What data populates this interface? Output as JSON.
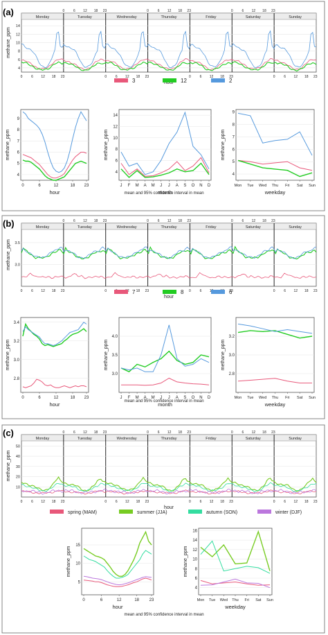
{
  "colors": {
    "p3": "#e8587a",
    "p12": "#22cc22",
    "p2": "#5599dd",
    "p7": "#e8587a",
    "p8": "#22cc22",
    "p6": "#5599dd",
    "spring": "#e8587a",
    "summer": "#77cc22",
    "autumn": "#33dda0",
    "winter": "#bb77dd"
  },
  "common": {
    "days": [
      "Monday",
      "Tuesday",
      "Wednesday",
      "Thursday",
      "Friday",
      "Saturday",
      "Sunday"
    ],
    "top_ticks": [
      "0",
      "6",
      "12",
      "18",
      "23"
    ],
    "hour_ticks": [
      "0",
      "6",
      "12",
      "18",
      "23"
    ],
    "months": [
      "J",
      "F",
      "M",
      "A",
      "M",
      "J",
      "J",
      "A",
      "S",
      "O",
      "N",
      "D"
    ],
    "weekdays": [
      "Mon",
      "Tue",
      "Wed",
      "Thu",
      "Fri",
      "Sat",
      "Sun"
    ],
    "ylabel": "methane_ppm",
    "x_hour": "hour",
    "x_month": "month",
    "x_weekday": "weekday",
    "caption": "mean and 95% confidence interval in mean"
  },
  "chart_data": [
    {
      "panel": "(a)",
      "type": "line",
      "legend": [
        "3",
        "12",
        "2"
      ],
      "main": {
        "ylim": [
          3,
          15.5
        ],
        "yticks": [
          "4",
          "6",
          "8",
          "10",
          "12",
          "14"
        ]
      },
      "hour": {
        "ylim": [
          3.5,
          9.8
        ],
        "yticks": [
          "4",
          "5",
          "6",
          "7",
          "8",
          "9"
        ],
        "series": [
          [
            5.8,
            5.7,
            5.6,
            5.5,
            5.3,
            5.1,
            4.9,
            4.6,
            4.3,
            4.0,
            3.8,
            3.7,
            3.7,
            3.8,
            3.9,
            4.1,
            4.5,
            4.9,
            5.3,
            5.6,
            5.8,
            6.0,
            6.0,
            5.9
          ],
          [
            5.3,
            5.2,
            5.2,
            5.1,
            4.9,
            4.7,
            4.5,
            4.2,
            3.9,
            3.7,
            3.6,
            3.5,
            3.5,
            3.6,
            3.7,
            3.8,
            4.1,
            4.4,
            4.7,
            5.0,
            5.1,
            5.2,
            5.1,
            5.0
          ],
          [
            9.6,
            9.4,
            9.0,
            8.8,
            8.6,
            8.4,
            8.1,
            7.6,
            6.9,
            6.0,
            5.2,
            4.6,
            4.3,
            4.2,
            4.3,
            4.6,
            5.2,
            6.1,
            7.2,
            8.2,
            9.0,
            9.6,
            9.2,
            8.8
          ]
        ]
      },
      "month": {
        "ylim": [
          2.5,
          15
        ],
        "yticks": [
          "4",
          "6",
          "8",
          "10",
          "12",
          "14"
        ],
        "series": [
          [
            5.5,
            3.5,
            4.5,
            3.2,
            3.3,
            3.8,
            4.5,
            5.8,
            4.2,
            5.0,
            6.5,
            3.8
          ],
          [
            4.5,
            3.0,
            4.2,
            3.0,
            3.1,
            3.4,
            3.8,
            4.5,
            4.0,
            4.2,
            5.5,
            3.5
          ],
          [
            7.5,
            5.0,
            5.5,
            3.5,
            4.0,
            6.0,
            9.0,
            11.0,
            14.5,
            8.5,
            7.0,
            4.5
          ]
        ]
      },
      "weekday": {
        "ylim": [
          3.5,
          9.2
        ],
        "yticks": [
          "4",
          "5",
          "6",
          "7",
          "8",
          "9"
        ],
        "series": [
          [
            5.1,
            5.0,
            4.8,
            4.9,
            5.0,
            4.5,
            4.3
          ],
          [
            5.1,
            4.8,
            4.5,
            4.4,
            4.3,
            3.8,
            4.1
          ],
          [
            8.9,
            8.7,
            6.5,
            6.7,
            6.8,
            7.4,
            5.5
          ]
        ]
      }
    },
    {
      "panel": "(b)",
      "type": "line",
      "legend": [
        "7",
        "8",
        "6"
      ],
      "main": {
        "ylim": [
          2.5,
          3.8
        ],
        "yticks": [
          "2.5",
          "3.0",
          "3.5"
        ]
      },
      "hour": {
        "ylim": [
          2.65,
          3.45
        ],
        "yticks": [
          "2.8",
          "3.0",
          "3.2",
          "3.4"
        ],
        "series": [
          [
            2.71,
            2.7,
            2.71,
            2.72,
            2.75,
            2.79,
            2.78,
            2.76,
            2.73,
            2.72,
            2.73,
            2.71,
            2.7,
            2.7,
            2.71,
            2.72,
            2.71,
            2.7,
            2.71,
            2.72,
            2.71,
            2.72,
            2.72,
            2.71
          ],
          [
            3.25,
            3.38,
            3.33,
            3.3,
            3.27,
            3.25,
            3.22,
            3.17,
            3.15,
            3.16,
            3.15,
            3.14,
            3.15,
            3.16,
            3.17,
            3.2,
            3.22,
            3.25,
            3.27,
            3.28,
            3.29,
            3.31,
            3.33,
            3.3
          ],
          [
            3.3,
            3.35,
            3.32,
            3.3,
            3.28,
            3.26,
            3.24,
            3.2,
            3.17,
            3.17,
            3.16,
            3.15,
            3.16,
            3.18,
            3.2,
            3.23,
            3.26,
            3.29,
            3.3,
            3.31,
            3.32,
            3.36,
            3.4,
            3.38
          ]
        ]
      },
      "month": {
        "ylim": [
          2.5,
          4.5
        ],
        "yticks": [
          "3.0",
          "3.5",
          "4.0"
        ],
        "series": [
          [
            2.7,
            2.7,
            2.7,
            2.69,
            2.7,
            2.75,
            2.88,
            2.78,
            2.75,
            2.73,
            2.72,
            2.7
          ],
          [
            3.15,
            3.05,
            3.25,
            3.18,
            3.3,
            3.4,
            3.6,
            3.35,
            3.25,
            3.3,
            3.5,
            3.45
          ],
          [
            3.15,
            3.1,
            3.15,
            3.05,
            3.05,
            3.5,
            4.3,
            3.4,
            3.2,
            3.25,
            3.4,
            3.3
          ]
        ]
      },
      "weekday": {
        "ylim": [
          2.6,
          3.4
        ],
        "yticks": [
          "2.8",
          "3.0",
          "3.2"
        ],
        "series": [
          [
            2.72,
            2.73,
            2.74,
            2.75,
            2.72,
            2.7,
            2.7
          ],
          [
            3.24,
            3.26,
            3.25,
            3.26,
            3.22,
            3.18,
            3.2
          ],
          [
            3.33,
            3.31,
            3.28,
            3.25,
            3.27,
            3.25,
            3.23
          ]
        ]
      }
    },
    {
      "panel": "(c)",
      "type": "line",
      "legend": [
        "spring (MAM)",
        "summer (JJA)",
        "autumn (SON)",
        "winter (DJF)"
      ],
      "main": {
        "ylim": [
          0,
          55
        ],
        "yticks": [
          "10",
          "20",
          "30",
          "40",
          "50"
        ]
      },
      "hour": {
        "ylim": [
          1.5,
          19.5
        ],
        "yticks": [
          "5",
          "10",
          "15"
        ],
        "series": [
          [
            5.5,
            5.4,
            5.3,
            5.2,
            5.0,
            5.0,
            4.8,
            4.5,
            4.2,
            4.0,
            3.8,
            3.7,
            3.7,
            3.8,
            4.0,
            4.2,
            4.5,
            4.8,
            5.0,
            5.4,
            5.8,
            6.0,
            5.8,
            5.5
          ],
          [
            14.0,
            13.5,
            13.0,
            12.5,
            12.0,
            11.8,
            11.5,
            11.0,
            10.0,
            9.0,
            7.8,
            7.0,
            6.5,
            6.5,
            7.0,
            8.0,
            9.5,
            11.0,
            13.0,
            15.5,
            17.0,
            18.5,
            16.0,
            15.0
          ],
          [
            12.0,
            11.5,
            11.0,
            10.8,
            10.5,
            10.0,
            9.5,
            9.0,
            8.0,
            7.2,
            6.5,
            6.0,
            6.0,
            6.2,
            6.5,
            7.0,
            8.0,
            9.0,
            10.0,
            11.0,
            12.5,
            13.5,
            13.0,
            12.5
          ],
          [
            6.5,
            6.4,
            6.2,
            6.0,
            5.9,
            5.8,
            5.6,
            5.3,
            5.0,
            4.7,
            4.5,
            4.3,
            4.2,
            4.3,
            4.5,
            4.7,
            5.0,
            5.3,
            5.6,
            5.9,
            6.2,
            6.4,
            6.3,
            6.2
          ]
        ]
      },
      "weekday": {
        "ylim": [
          2.5,
          16.5
        ],
        "yticks": [
          "4",
          "6",
          "8",
          "10",
          "12",
          "14",
          "16"
        ],
        "series": [
          [
            5.5,
            4.8,
            5.0,
            5.2,
            4.8,
            4.5,
            4.6
          ],
          [
            12.5,
            10.5,
            13.0,
            9.0,
            9.2,
            15.8,
            7.5
          ],
          [
            11.0,
            13.8,
            7.5,
            8.0,
            8.5,
            8.2,
            7.0
          ],
          [
            4.5,
            4.6,
            5.2,
            5.8,
            5.0,
            4.9,
            4.0
          ]
        ]
      }
    }
  ]
}
